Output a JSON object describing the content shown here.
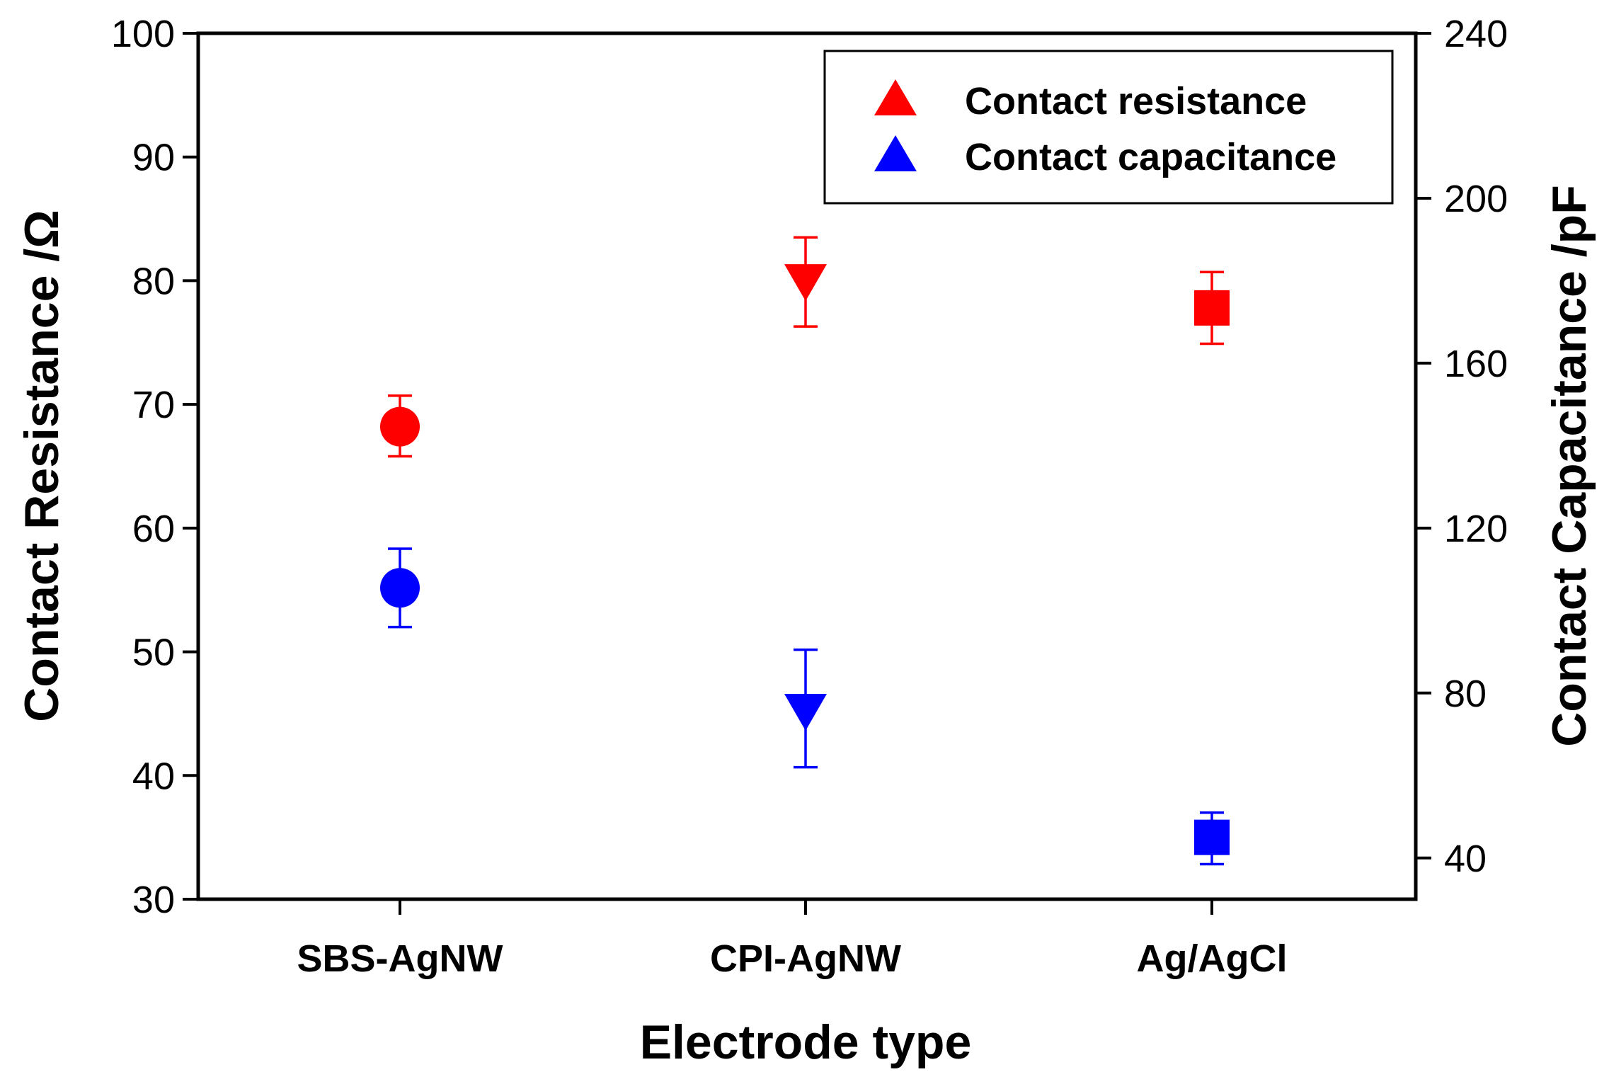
{
  "chart_data": {
    "type": "scatter",
    "title": "",
    "xlabel": "Electrode type",
    "ylabel": "Contact Resistance /Ω",
    "y2label": "Contact Capacitance /pF",
    "categories": [
      "SBS-AgNW",
      "CPI-AgNW",
      "Ag/AgCl"
    ],
    "ylim": [
      30,
      100
    ],
    "yticks": [
      30,
      40,
      50,
      60,
      70,
      80,
      90,
      100
    ],
    "y2lim": [
      30,
      240
    ],
    "y2ticks": [
      40,
      80,
      120,
      160,
      200,
      240
    ],
    "legend_position": "top-right",
    "series": [
      {
        "name": "Contact resistance",
        "axis": "left",
        "color": "#ff0000",
        "markers": [
          "circle",
          "triangle-down",
          "square"
        ],
        "values": [
          68.2,
          79.9,
          77.8
        ],
        "err_low": [
          2.4,
          3.6,
          2.9
        ],
        "err_high": [
          2.5,
          3.6,
          2.9
        ]
      },
      {
        "name": "Contact capacitance",
        "axis": "right",
        "color": "#0000ff",
        "markers": [
          "circle",
          "triangle-down",
          "square"
        ],
        "values": [
          105.5,
          75.5,
          45.0
        ],
        "err_low": [
          9.5,
          13.5,
          6.5
        ],
        "err_high": [
          9.5,
          15.0,
          6.0
        ]
      }
    ],
    "legend": [
      {
        "label": "Contact resistance",
        "color": "#ff0000",
        "marker": "triangle-up"
      },
      {
        "label": "Contact capacitance",
        "color": "#0000ff",
        "marker": "triangle-up"
      }
    ]
  }
}
